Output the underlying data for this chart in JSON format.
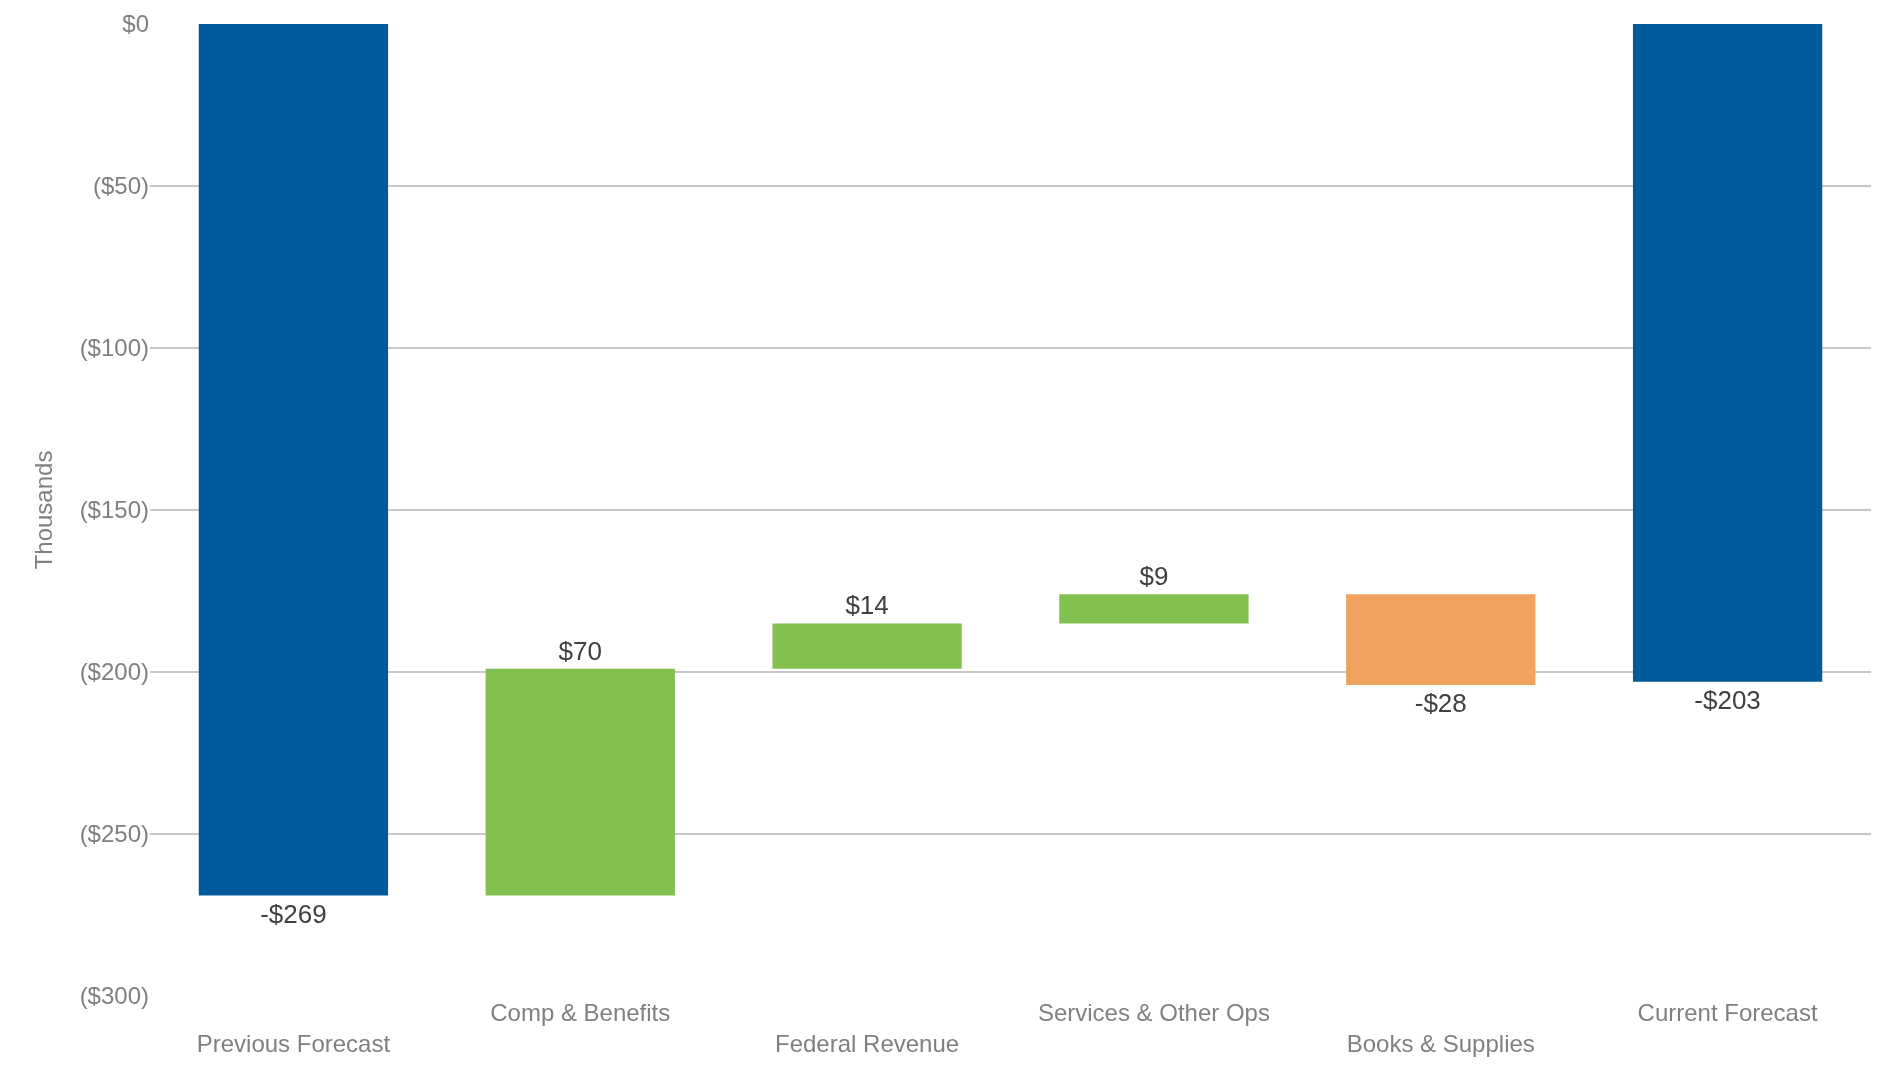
{
  "chart_data": {
    "type": "bar",
    "ylabel": "Thousands",
    "categories": [
      "Previous Forecast",
      "Comp & Benefits",
      "Federal Revenue",
      "Services & Other Ops",
      "Books & Supplies",
      "Current Forecast"
    ],
    "values": [
      -269,
      70,
      14,
      9,
      -28,
      -203
    ],
    "base": [
      0,
      -269,
      -199,
      -185,
      -176,
      0
    ],
    "colors": [
      "#005a9c",
      "#82c04f",
      "#82c04f",
      "#82c04f",
      "#f0a35e",
      "#005a9c"
    ],
    "value_labels": [
      "-$269",
      "$70",
      "$14",
      "$9",
      "-$28",
      "-$203"
    ],
    "ylim": [
      -300,
      0
    ],
    "yticks": [
      {
        "value": 0,
        "label": "$0"
      },
      {
        "value": -50,
        "label": "($50)"
      },
      {
        "value": -100,
        "label": "($100)"
      },
      {
        "value": -150,
        "label": "($150)"
      },
      {
        "value": -200,
        "label": "($200)"
      },
      {
        "value": -250,
        "label": "($250)"
      },
      {
        "value": -300,
        "label": "($300)"
      }
    ],
    "grid": "y",
    "legend": false
  }
}
